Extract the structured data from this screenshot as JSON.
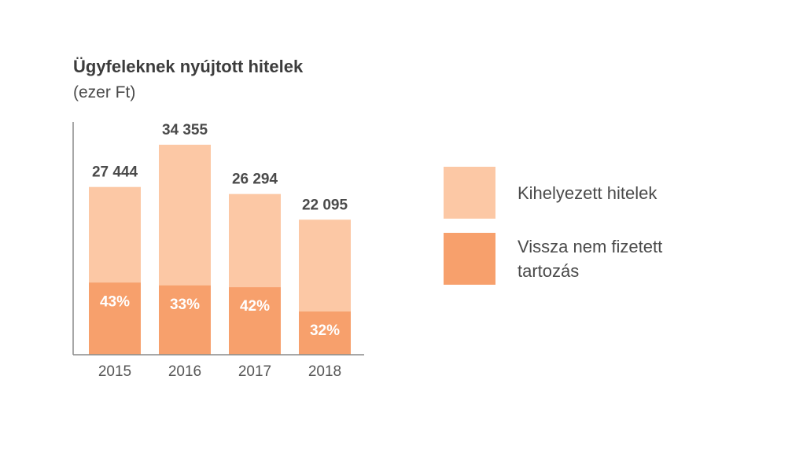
{
  "chart_data": {
    "type": "bar",
    "title": "Ügyfeleknek nyújtott hitelek",
    "subtitle": "(ezer Ft)",
    "categories": [
      "2015",
      "2016",
      "2017",
      "2018"
    ],
    "series": [
      {
        "name": "Kihelyezett hitelek",
        "values": [
          27444,
          34355,
          26294,
          22095
        ],
        "labels": [
          "27 444",
          "34 355",
          "26 294",
          "22 095"
        ],
        "color": "#FCC8A5"
      },
      {
        "name": "Vissza nem fizetett tartozás",
        "share_of_total": [
          0.43,
          0.33,
          0.42,
          0.32
        ],
        "labels": [
          "43%",
          "33%",
          "42%",
          "32%"
        ],
        "color": "#F7A06C"
      }
    ],
    "ylim": [
      0,
      34355
    ],
    "grid": false,
    "legend_position": "right"
  }
}
